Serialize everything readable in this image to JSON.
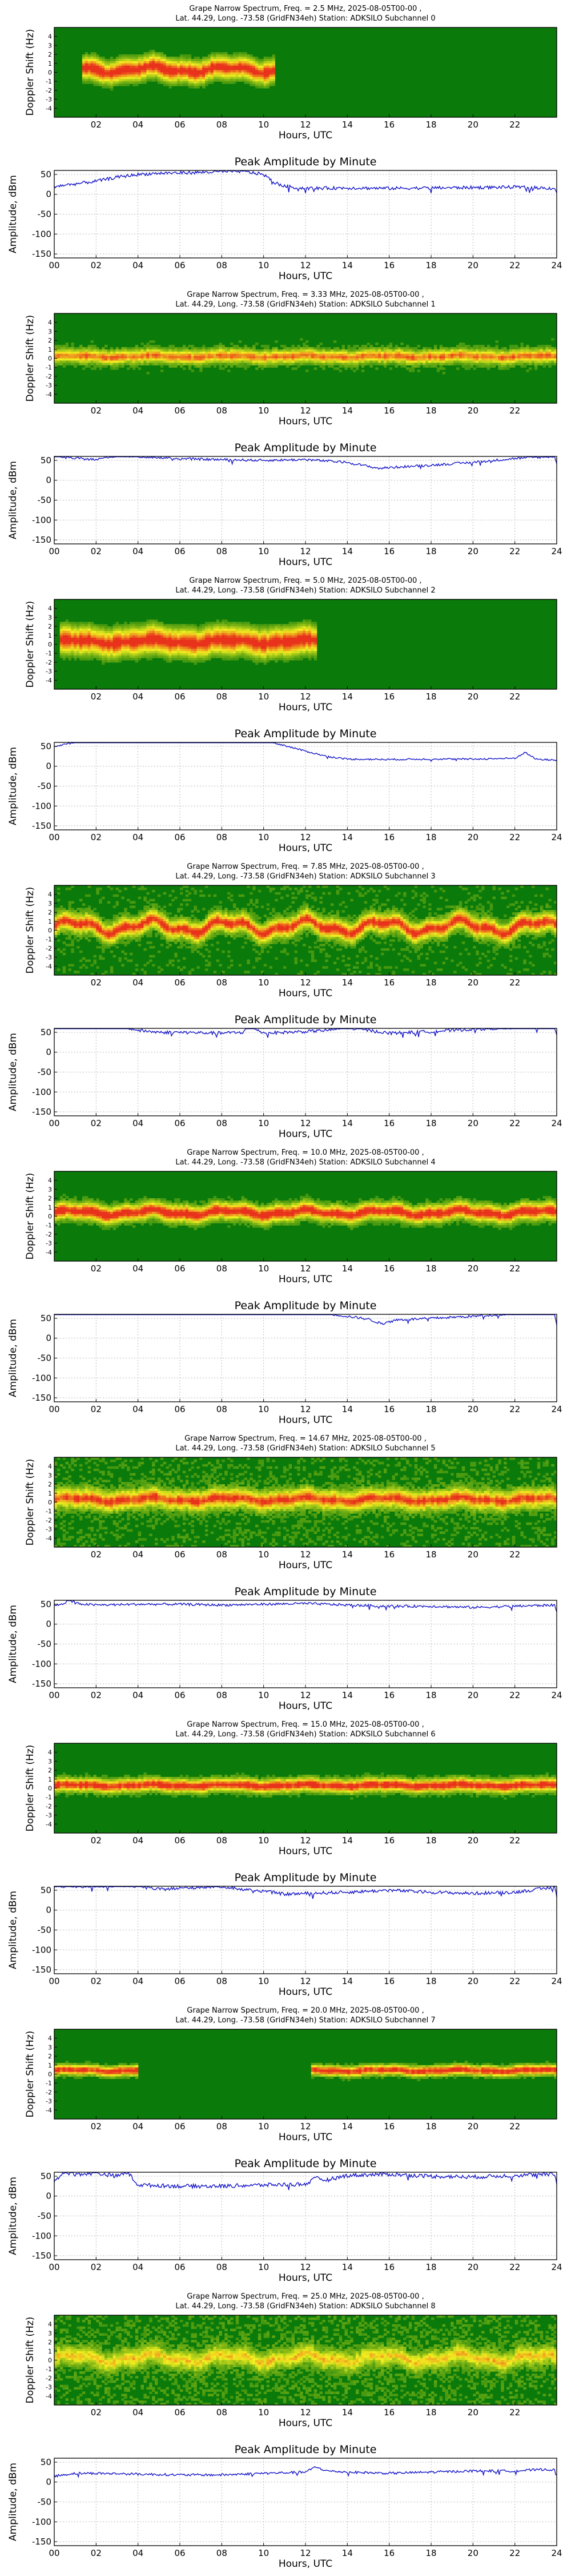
{
  "colors": {
    "background_green": "#0a7a0a",
    "mid_green": "#4aa82a",
    "yellow": "#f2f020",
    "orange": "#f59a16",
    "red": "#e8321c",
    "trace_blue": "#1414c8",
    "grid_grey": "#b8b8b8"
  },
  "chart_data": [
    {
      "type": "heatmap",
      "title_line1": "Grape Narrow Spectrum, Freq. = 2.5 MHz, 2025-08-05T00-00 ,",
      "title_line2": "Lat.  44.29, Long. -73.58 (GridFN34eh) Station: ADKSILO Subchannel 0",
      "xlabel": "Hours, UTC",
      "ylabel": "Doppler Shift (Hz)",
      "xlim": [
        0,
        24
      ],
      "ylim": [
        -5,
        5
      ],
      "xticks": [
        "02",
        "04",
        "06",
        "08",
        "10",
        "12",
        "14",
        "16",
        "18",
        "20",
        "22"
      ],
      "yticks": [
        "-4",
        "-3",
        "-2",
        "-1",
        "0",
        "1",
        "2",
        "3",
        "4"
      ],
      "colormap": [
        "#0a7a0a",
        "#f2f020",
        "#e8321c"
      ],
      "signal": {
        "start": 1.3,
        "end": 10.5,
        "center": 0.3,
        "width": 2.6,
        "intensity": 0.92,
        "wave": 0.6,
        "noise": 0.05
      }
    },
    {
      "type": "line",
      "title": "Peak Amplitude by Minute",
      "xlabel": "Hours, UTC",
      "ylabel": "Amplitude, dBm",
      "xlim": [
        0,
        24
      ],
      "ylim": [
        -160,
        60
      ],
      "xticks": [
        "00",
        "02",
        "04",
        "06",
        "08",
        "10",
        "12",
        "14",
        "16",
        "18",
        "20",
        "22",
        "24"
      ],
      "yticks": [
        "-150",
        "-100",
        "-50",
        "0",
        "50"
      ],
      "grid": true,
      "x": [
        0,
        1,
        2,
        3,
        4,
        5,
        6,
        7,
        8,
        9,
        10,
        10.5,
        11,
        12,
        14,
        16,
        18,
        20,
        22,
        23.9,
        24
      ],
      "y": [
        20,
        26,
        33,
        43,
        50,
        53,
        54,
        55,
        57,
        58,
        50,
        30,
        20,
        15,
        16,
        15,
        16,
        17,
        18,
        15,
        5
      ],
      "jitter": 4
    },
    {
      "type": "heatmap",
      "title_line1": "Grape Narrow Spectrum, Freq. = 3.33 MHz, 2025-08-05T00-00 ,",
      "title_line2": "Lat.  44.29, Long. -73.58 (GridFN34eh) Station: ADKSILO Subchannel 1",
      "xlabel": "Hours, UTC",
      "ylabel": "Doppler Shift (Hz)",
      "xlim": [
        0,
        24
      ],
      "ylim": [
        -5,
        5
      ],
      "xticks": [
        "02",
        "04",
        "06",
        "08",
        "10",
        "12",
        "14",
        "16",
        "18",
        "20",
        "22"
      ],
      "yticks": [
        "-4",
        "-3",
        "-2",
        "-1",
        "0",
        "1",
        "2",
        "3",
        "4"
      ],
      "colormap": [
        "#0a7a0a",
        "#f2f020",
        "#e8321c"
      ],
      "signal": {
        "start": 0,
        "end": 24,
        "center": 0.2,
        "width": 1.7,
        "intensity": 0.62,
        "wave": 0.2,
        "noise": 0.12
      }
    },
    {
      "type": "line",
      "title": "Peak Amplitude by Minute",
      "xlabel": "Hours, UTC",
      "ylabel": "Amplitude, dBm",
      "xlim": [
        0,
        24
      ],
      "ylim": [
        -160,
        60
      ],
      "xticks": [
        "00",
        "02",
        "04",
        "06",
        "08",
        "10",
        "12",
        "14",
        "16",
        "18",
        "20",
        "22",
        "24"
      ],
      "yticks": [
        "-150",
        "-100",
        "-50",
        "0",
        "50"
      ],
      "grid": true,
      "x": [
        0,
        1,
        2,
        3,
        4,
        6,
        8,
        10,
        12,
        14,
        15.5,
        16,
        18,
        20,
        22,
        23.9,
        24
      ],
      "y": [
        60,
        55,
        52,
        62,
        60,
        54,
        52,
        50,
        52,
        45,
        30,
        32,
        38,
        45,
        55,
        60,
        40
      ],
      "jitter": 3
    },
    {
      "type": "heatmap",
      "title_line1": "Grape Narrow Spectrum, Freq. = 5.0 MHz, 2025-08-05T00-00 ,",
      "title_line2": "Lat.  44.29, Long. -73.58 (GridFN34eh) Station: ADKSILO Subchannel 2",
      "xlabel": "Hours, UTC",
      "ylabel": "Doppler Shift (Hz)",
      "xlim": [
        0,
        24
      ],
      "ylim": [
        -5,
        5
      ],
      "xticks": [
        "02",
        "04",
        "06",
        "08",
        "10",
        "12",
        "14",
        "16",
        "18",
        "20",
        "22"
      ],
      "yticks": [
        "-4",
        "-3",
        "-2",
        "-1",
        "0",
        "1",
        "2",
        "3",
        "4"
      ],
      "colormap": [
        "#0a7a0a",
        "#f2f020",
        "#e8321c"
      ],
      "signal": {
        "start": 0.3,
        "end": 12.5,
        "center": 0.3,
        "width": 3.2,
        "intensity": 0.95,
        "wave": 0.4,
        "noise": 0.05
      }
    },
    {
      "type": "line",
      "title": "Peak Amplitude by Minute",
      "xlabel": "Hours, UTC",
      "ylabel": "Amplitude, dBm",
      "xlim": [
        0,
        24
      ],
      "ylim": [
        -160,
        60
      ],
      "xticks": [
        "00",
        "02",
        "04",
        "06",
        "08",
        "10",
        "12",
        "14",
        "16",
        "18",
        "20",
        "22",
        "24"
      ],
      "yticks": [
        "-150",
        "-100",
        "-50",
        "0",
        "50"
      ],
      "grid": true,
      "x": [
        0,
        1,
        2,
        4,
        6,
        8,
        9,
        10,
        11,
        12,
        13,
        14,
        16,
        18,
        20,
        22,
        22.5,
        23,
        24
      ],
      "y": [
        50,
        60,
        68,
        72,
        72,
        73,
        70,
        66,
        52,
        38,
        25,
        18,
        17,
        18,
        18,
        20,
        35,
        18,
        15
      ],
      "jitter": 2
    },
    {
      "type": "heatmap",
      "title_line1": "Grape Narrow Spectrum, Freq. = 7.85 MHz, 2025-08-05T00-00 ,",
      "title_line2": "Lat.  44.29, Long. -73.58 (GridFN34eh) Station: ADKSILO Subchannel 3",
      "xlabel": "Hours, UTC",
      "ylabel": "Doppler Shift (Hz)",
      "xlim": [
        0,
        24
      ],
      "ylim": [
        -5,
        5
      ],
      "xticks": [
        "02",
        "04",
        "06",
        "08",
        "10",
        "12",
        "14",
        "16",
        "18",
        "20",
        "22"
      ],
      "yticks": [
        "-4",
        "-3",
        "-2",
        "-1",
        "0",
        "1",
        "2",
        "3",
        "4"
      ],
      "colormap": [
        "#0a7a0a",
        "#f2f020",
        "#e8321c"
      ],
      "signal": {
        "start": 0,
        "end": 24,
        "center": 0.4,
        "width": 2.2,
        "intensity": 0.8,
        "wave": 1.2,
        "noise": 0.14
      }
    },
    {
      "type": "line",
      "title": "Peak Amplitude by Minute",
      "xlabel": "Hours, UTC",
      "ylabel": "Amplitude, dBm",
      "xlim": [
        0,
        24
      ],
      "ylim": [
        -160,
        60
      ],
      "xticks": [
        "00",
        "02",
        "04",
        "06",
        "08",
        "10",
        "12",
        "14",
        "16",
        "18",
        "20",
        "22",
        "24"
      ],
      "yticks": [
        "-150",
        "-100",
        "-50",
        "0",
        "50"
      ],
      "grid": true,
      "x": [
        0,
        1,
        2,
        3,
        4,
        5,
        6,
        8,
        9,
        9.3,
        10,
        11,
        12,
        13,
        14,
        15,
        16,
        18,
        20,
        22,
        23.9,
        24
      ],
      "y": [
        65,
        64,
        70,
        68,
        55,
        50,
        50,
        48,
        50,
        68,
        48,
        50,
        52,
        55,
        62,
        55,
        48,
        52,
        58,
        62,
        65,
        45
      ],
      "jitter": 4
    },
    {
      "type": "heatmap",
      "title_line1": "Grape Narrow Spectrum, Freq. = 10.0 MHz, 2025-08-05T00-00 ,",
      "title_line2": "Lat.  44.29, Long. -73.58 (GridFN34eh) Station: ADKSILO Subchannel 4",
      "xlabel": "Hours, UTC",
      "ylabel": "Doppler Shift (Hz)",
      "xlim": [
        0,
        24
      ],
      "ylim": [
        -5,
        5
      ],
      "xticks": [
        "02",
        "04",
        "06",
        "08",
        "10",
        "12",
        "14",
        "16",
        "18",
        "20",
        "22"
      ],
      "yticks": [
        "-4",
        "-3",
        "-2",
        "-1",
        "0",
        "1",
        "2",
        "3",
        "4"
      ],
      "colormap": [
        "#0a7a0a",
        "#f2f020",
        "#e8321c"
      ],
      "signal": {
        "start": 0,
        "end": 24,
        "center": 0.4,
        "width": 2.0,
        "intensity": 0.88,
        "wave": 0.5,
        "noise": 0.1
      }
    },
    {
      "type": "line",
      "title": "Peak Amplitude by Minute",
      "xlabel": "Hours, UTC",
      "ylabel": "Amplitude, dBm",
      "xlim": [
        0,
        24
      ],
      "ylim": [
        -160,
        60
      ],
      "xticks": [
        "00",
        "02",
        "04",
        "06",
        "08",
        "10",
        "12",
        "14",
        "16",
        "18",
        "20",
        "22",
        "24"
      ],
      "yticks": [
        "-150",
        "-100",
        "-50",
        "0",
        "50"
      ],
      "grid": true,
      "x": [
        0,
        1,
        2,
        4,
        6,
        8,
        10,
        12,
        13,
        14,
        15,
        15.7,
        16,
        18,
        20,
        22,
        23.9,
        24
      ],
      "y": [
        72,
        70,
        68,
        72,
        72,
        70,
        70,
        68,
        62,
        55,
        48,
        35,
        45,
        50,
        55,
        62,
        65,
        30
      ],
      "jitter": 3
    },
    {
      "type": "heatmap",
      "title_line1": "Grape Narrow Spectrum, Freq. = 14.67 MHz, 2025-08-05T00-00 ,",
      "title_line2": "Lat.  44.29, Long. -73.58 (GridFN34eh) Station: ADKSILO Subchannel 5",
      "xlabel": "Hours, UTC",
      "ylabel": "Doppler Shift (Hz)",
      "xlim": [
        0,
        24
      ],
      "ylim": [
        -5,
        5
      ],
      "xticks": [
        "02",
        "04",
        "06",
        "08",
        "10",
        "12",
        "14",
        "16",
        "18",
        "20",
        "22"
      ],
      "yticks": [
        "-4",
        "-3",
        "-2",
        "-1",
        "0",
        "1",
        "2",
        "3",
        "4"
      ],
      "colormap": [
        "#0a7a0a",
        "#f2f020",
        "#e8321c"
      ],
      "signal": {
        "start": 0,
        "end": 24,
        "center": 0.3,
        "width": 2.3,
        "intensity": 0.72,
        "wave": 0.4,
        "noise": 0.16
      }
    },
    {
      "type": "line",
      "title": "Peak Amplitude by Minute",
      "xlabel": "Hours, UTC",
      "ylabel": "Amplitude, dBm",
      "xlim": [
        0,
        24
      ],
      "ylim": [
        -160,
        60
      ],
      "xticks": [
        "00",
        "02",
        "04",
        "06",
        "08",
        "10",
        "12",
        "14",
        "16",
        "18",
        "20",
        "22",
        "24"
      ],
      "yticks": [
        "-150",
        "-100",
        "-50",
        "0",
        "50"
      ],
      "grid": true,
      "x": [
        0,
        0.5,
        0.7,
        1,
        2,
        4,
        6,
        8,
        10,
        12,
        14,
        16,
        18,
        20,
        22,
        23.9,
        24
      ],
      "y": [
        48,
        50,
        72,
        52,
        48,
        50,
        50,
        48,
        50,
        52,
        48,
        45,
        45,
        42,
        45,
        48,
        30
      ],
      "jitter": 3
    },
    {
      "type": "heatmap",
      "title_line1": "Grape Narrow Spectrum, Freq. = 15.0 MHz, 2025-08-05T00-00 ,",
      "title_line2": "Lat.  44.29, Long. -73.58 (GridFN34eh) Station: ADKSILO Subchannel 6",
      "xlabel": "Hours, UTC",
      "ylabel": "Doppler Shift (Hz)",
      "xlim": [
        0,
        24
      ],
      "ylim": [
        -5,
        5
      ],
      "xticks": [
        "02",
        "04",
        "06",
        "08",
        "10",
        "12",
        "14",
        "16",
        "18",
        "20",
        "22"
      ],
      "yticks": [
        "-4",
        "-3",
        "-2",
        "-1",
        "0",
        "1",
        "2",
        "3",
        "4"
      ],
      "colormap": [
        "#0a7a0a",
        "#f2f020",
        "#e8321c"
      ],
      "signal": {
        "start": 0,
        "end": 24,
        "center": 0.3,
        "width": 1.6,
        "intensity": 0.82,
        "wave": 0.2,
        "noise": 0.1
      }
    },
    {
      "type": "line",
      "title": "Peak Amplitude by Minute",
      "xlabel": "Hours, UTC",
      "ylabel": "Amplitude, dBm",
      "xlim": [
        0,
        24
      ],
      "ylim": [
        -160,
        60
      ],
      "xticks": [
        "00",
        "02",
        "04",
        "06",
        "08",
        "10",
        "12",
        "14",
        "16",
        "18",
        "20",
        "22",
        "24"
      ],
      "yticks": [
        "-150",
        "-100",
        "-50",
        "0",
        "50"
      ],
      "grid": true,
      "x": [
        0,
        1,
        2,
        3,
        4,
        5,
        6,
        8,
        9,
        10,
        11,
        12,
        14,
        16,
        18,
        20,
        22,
        23.5,
        23.9,
        24
      ],
      "y": [
        60,
        58,
        60,
        62,
        60,
        52,
        55,
        60,
        52,
        48,
        40,
        42,
        45,
        50,
        45,
        42,
        45,
        55,
        58,
        35
      ],
      "jitter": 4
    },
    {
      "type": "heatmap",
      "title_line1": "Grape Narrow Spectrum, Freq. = 20.0 MHz, 2025-08-05T00-00 ,",
      "title_line2": "Lat.  44.29, Long. -73.58 (GridFN34eh) Station: ADKSILO Subchannel 7",
      "xlabel": "Hours, UTC",
      "ylabel": "Doppler Shift (Hz)",
      "xlim": [
        0,
        24
      ],
      "ylim": [
        -5,
        5
      ],
      "xticks": [
        "02",
        "04",
        "06",
        "08",
        "10",
        "12",
        "14",
        "16",
        "18",
        "20",
        "22"
      ],
      "yticks": [
        "-4",
        "-3",
        "-2",
        "-1",
        "0",
        "1",
        "2",
        "3",
        "4"
      ],
      "colormap": [
        "#0a7a0a",
        "#f2f020",
        "#e8321c"
      ],
      "signal": {
        "start": 0,
        "end": 24,
        "center": 0.4,
        "width": 1.2,
        "intensity": 0.78,
        "wave": 0.2,
        "noise": 0.1,
        "gaps": [
          [
            4.0,
            12.3
          ]
        ]
      }
    },
    {
      "type": "line",
      "title": "Peak Amplitude by Minute",
      "xlabel": "Hours, UTC",
      "ylabel": "Amplitude, dBm",
      "xlim": [
        0,
        24
      ],
      "ylim": [
        -160,
        60
      ],
      "xticks": [
        "00",
        "02",
        "04",
        "06",
        "08",
        "10",
        "12",
        "14",
        "16",
        "18",
        "20",
        "22",
        "24"
      ],
      "yticks": [
        "-150",
        "-100",
        "-50",
        "0",
        "50"
      ],
      "grid": true,
      "x": [
        0,
        0.5,
        1,
        2,
        3,
        3.5,
        4,
        6,
        8,
        10,
        12,
        12.5,
        13,
        14,
        16,
        18,
        20,
        22,
        23.9,
        24
      ],
      "y": [
        40,
        60,
        55,
        58,
        50,
        60,
        28,
        25,
        25,
        28,
        30,
        45,
        40,
        52,
        55,
        50,
        48,
        52,
        55,
        30
      ],
      "jitter": 5
    },
    {
      "type": "heatmap",
      "title_line1": "Grape Narrow Spectrum, Freq. = 25.0 MHz, 2025-08-05T00-00 ,",
      "title_line2": "Lat.  44.29, Long. -73.58 (GridFN34eh) Station: ADKSILO Subchannel 8",
      "xlabel": "Hours, UTC",
      "ylabel": "Doppler Shift (Hz)",
      "xlim": [
        0,
        24
      ],
      "ylim": [
        -5,
        5
      ],
      "xticks": [
        "02",
        "04",
        "06",
        "08",
        "10",
        "12",
        "14",
        "16",
        "18",
        "20",
        "22"
      ],
      "yticks": [
        "-4",
        "-3",
        "-2",
        "-1",
        "0",
        "1",
        "2",
        "3",
        "4"
      ],
      "colormap": [
        "#0a7a0a",
        "#f2f020",
        "#e8321c"
      ],
      "signal": {
        "start": 0,
        "end": 24,
        "center": 0.2,
        "width": 2.4,
        "intensity": 0.42,
        "wave": 0.8,
        "noise": 0.18
      }
    },
    {
      "type": "line",
      "title": "Peak Amplitude by Minute",
      "xlabel": "Hours, UTC",
      "ylabel": "Amplitude, dBm",
      "xlim": [
        0,
        24
      ],
      "ylim": [
        -160,
        60
      ],
      "xticks": [
        "00",
        "02",
        "04",
        "06",
        "08",
        "10",
        "12",
        "14",
        "16",
        "18",
        "20",
        "22",
        "24"
      ],
      "yticks": [
        "-150",
        "-100",
        "-50",
        "0",
        "50"
      ],
      "grid": true,
      "x": [
        0,
        1,
        2,
        4,
        6,
        8,
        10,
        12,
        12.5,
        13,
        14,
        16,
        18,
        20,
        22,
        23.5,
        23.9,
        24
      ],
      "y": [
        15,
        22,
        22,
        20,
        18,
        18,
        22,
        25,
        38,
        28,
        25,
        22,
        25,
        28,
        28,
        32,
        30,
        20
      ],
      "jitter": 3
    }
  ]
}
